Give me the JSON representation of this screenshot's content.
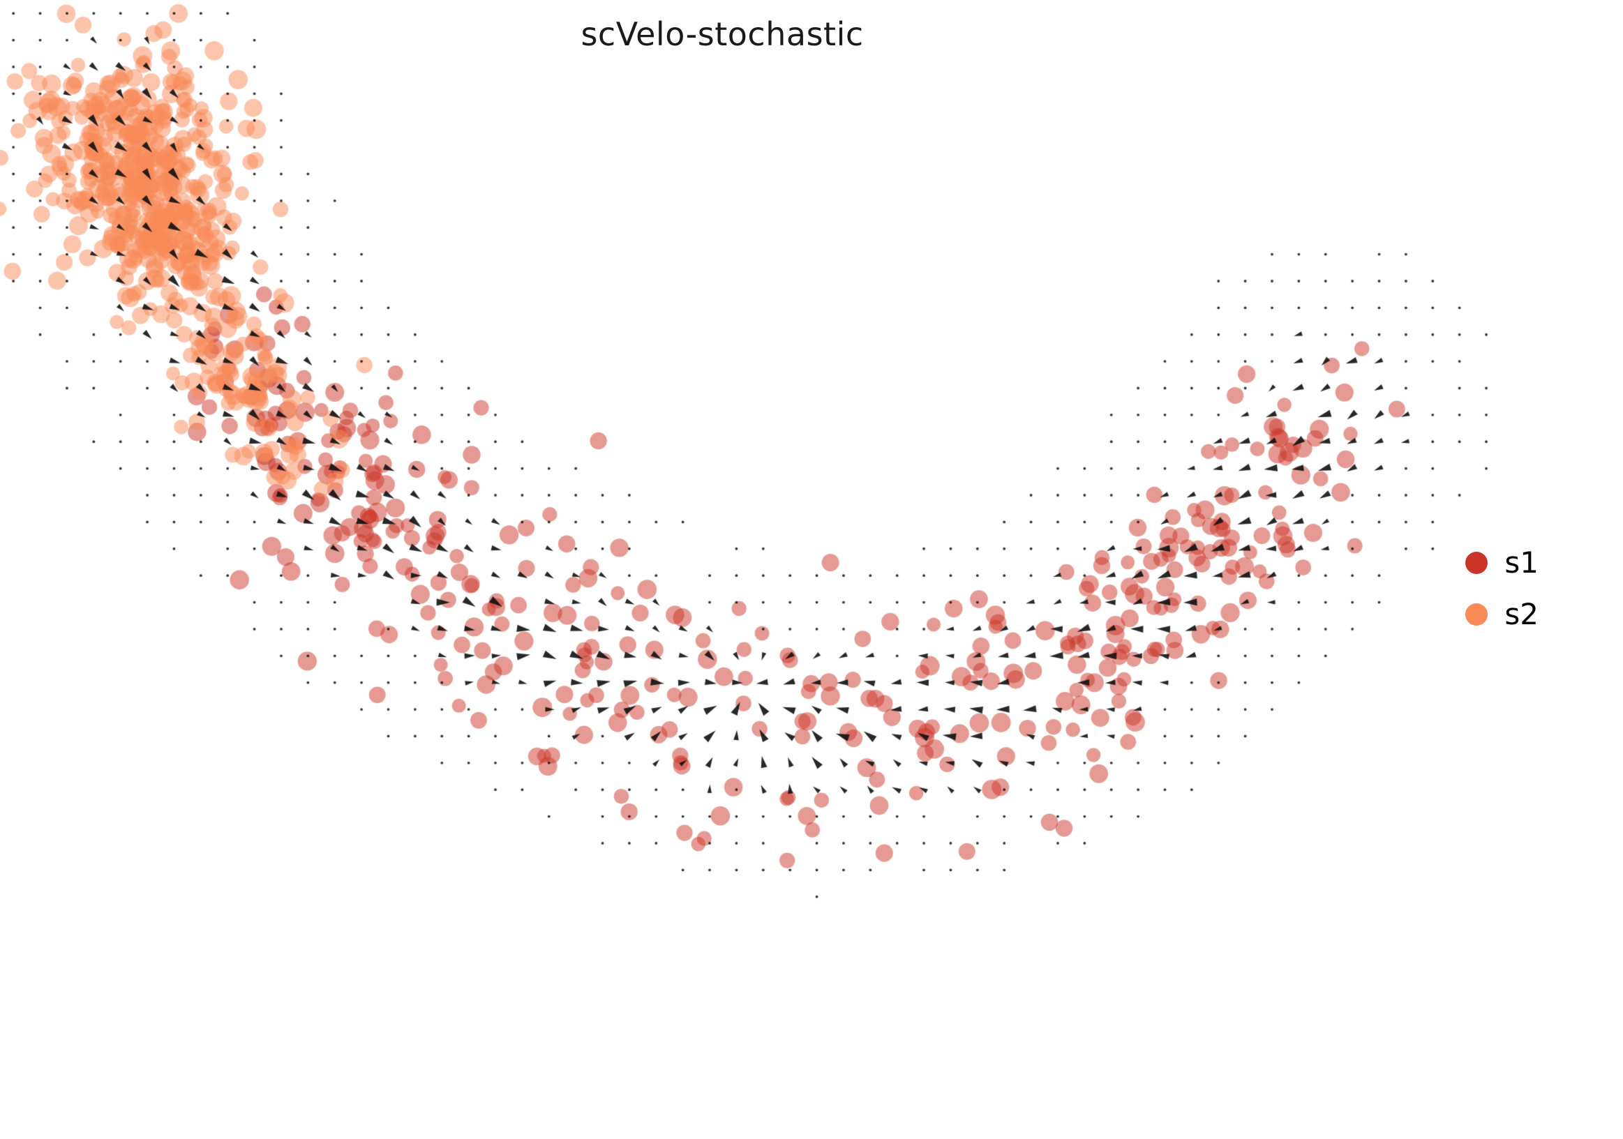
{
  "chart_data": {
    "type": "scatter",
    "title": "scVelo-stochastic",
    "subtitle": "",
    "background": "#ffffff",
    "axes": "hidden",
    "grid": false,
    "legend_position": "center right",
    "series": [
      {
        "name": "s1",
        "color": "#cb3527",
        "marker": "circle"
      },
      {
        "name": "s2",
        "color": "#f98a57",
        "marker": "circle"
      }
    ],
    "overlay": "velocity-arrow-field",
    "embedding_curve": [
      [
        0.072,
        0.105
      ],
      [
        0.093,
        0.165
      ],
      [
        0.112,
        0.235
      ],
      [
        0.14,
        0.31
      ],
      [
        0.175,
        0.375
      ],
      [
        0.215,
        0.435
      ],
      [
        0.262,
        0.495
      ],
      [
        0.315,
        0.545
      ],
      [
        0.372,
        0.585
      ],
      [
        0.435,
        0.62
      ],
      [
        0.505,
        0.64
      ],
      [
        0.575,
        0.635
      ],
      [
        0.64,
        0.605
      ],
      [
        0.7,
        0.55
      ],
      [
        0.752,
        0.48
      ],
      [
        0.795,
        0.41
      ],
      [
        0.822,
        0.355
      ]
    ],
    "seed": 1337,
    "point_radius": [
      10,
      14
    ],
    "point_alpha": 0.5,
    "clusters": [
      {
        "series": 0,
        "count": 80,
        "t": [
          0.17,
          0.36
        ],
        "sd": 0.022,
        "skew": 1.0
      },
      {
        "series": 0,
        "count": 210,
        "t": [
          0.3,
          0.8
        ],
        "sd": 0.04,
        "skew": 1.0
      },
      {
        "series": 0,
        "count": 115,
        "t": [
          0.76,
          1.0
        ],
        "sd": 0.024,
        "skew": 1.0
      },
      {
        "series": 1,
        "count": 420,
        "t": [
          0.0,
          0.1
        ],
        "sd": 0.028,
        "skew": 1.2
      },
      {
        "series": 1,
        "count": 170,
        "t": [
          0.07,
          0.27
        ],
        "sd": 0.017,
        "skew": 1.0
      }
    ],
    "arrows": {
      "grid_step": 0.0165,
      "max_dist": 0.072,
      "sink": [
        0.46,
        0.6
      ],
      "color": "#111111",
      "dot_threshold": 0.34,
      "len_range": [
        7,
        19
      ]
    }
  }
}
